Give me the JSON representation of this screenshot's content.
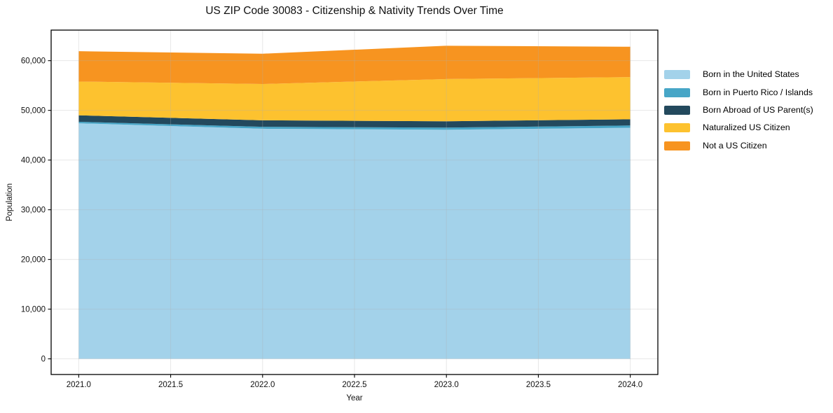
{
  "chart_data": {
    "type": "area",
    "stacked": true,
    "title": "US ZIP Code 30083 - Citizenship & Nativity Trends Over Time",
    "xlabel": "Year",
    "ylabel": "Population",
    "x": [
      2021,
      2022,
      2023,
      2024
    ],
    "series": [
      {
        "name": "Born in the United States",
        "color": "#A3D2EA",
        "values": [
          47400,
          46300,
          46100,
          46500
        ]
      },
      {
        "name": "Born in Puerto Rico / Islands",
        "color": "#47A6C7",
        "values": [
          300,
          400,
          430,
          450
        ]
      },
      {
        "name": "Born Abroad of US Parent(s)",
        "color": "#23495D",
        "values": [
          1300,
          1300,
          1270,
          1250
        ]
      },
      {
        "name": "Naturalized US Citizen",
        "color": "#FDC22F",
        "values": [
          6800,
          7300,
          8500,
          8500
        ]
      },
      {
        "name": "Not a US Citizen",
        "color": "#F79420",
        "values": [
          6100,
          6100,
          6700,
          6100
        ]
      }
    ],
    "xlim": [
      2020.85,
      2024.15
    ],
    "ylim": [
      -3150,
      66150
    ],
    "xticks": [
      "2021.0",
      "2021.5",
      "2022.0",
      "2022.5",
      "2023.0",
      "2023.5",
      "2024.0"
    ],
    "xtick_values": [
      2021.0,
      2021.5,
      2022.0,
      2022.5,
      2023.0,
      2023.5,
      2024.0
    ],
    "yticks": [
      "0",
      "10,000",
      "20,000",
      "30,000",
      "40,000",
      "50,000",
      "60,000"
    ],
    "ytick_values": [
      0,
      10000,
      20000,
      30000,
      40000,
      50000,
      60000
    ],
    "grid": true,
    "grid_color": "#b0b0b0",
    "legend_position": "right outside"
  }
}
